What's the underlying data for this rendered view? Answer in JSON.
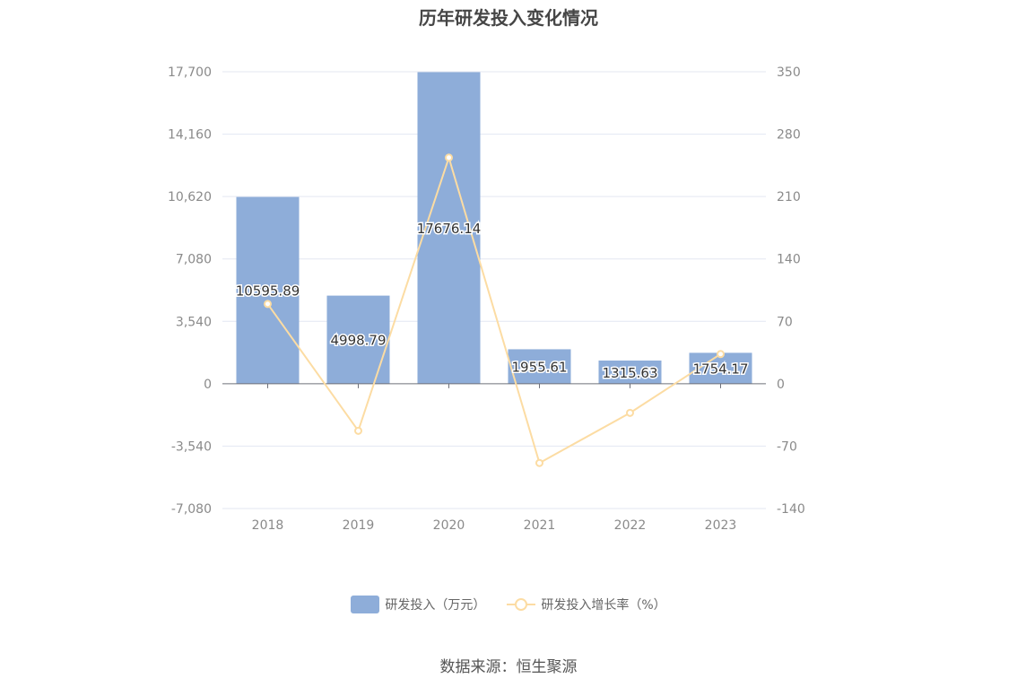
{
  "colors": {
    "bar": "#8eadd9",
    "line": "#fcdca3",
    "grid": "#e3e7f2",
    "axis": "#6e7079",
    "tick_text": "#8a8a8a"
  },
  "source_text": "数据来源：恒生聚源",
  "chart_data": {
    "type": "bar",
    "title": "历年研发投入变化情况",
    "categories": [
      "2018",
      "2019",
      "2020",
      "2021",
      "2022",
      "2023"
    ],
    "y_left": {
      "ticks": [
        "17,700",
        "14,160",
        "10,620",
        "7,080",
        "3,540",
        "0",
        "-3,540",
        "-7,080"
      ],
      "min": -7080,
      "max": 17700
    },
    "y_right": {
      "ticks": [
        "350",
        "280",
        "210",
        "140",
        "70",
        "0",
        "-70",
        "-140"
      ],
      "min": -140,
      "max": 350
    },
    "series": [
      {
        "name": "研发投入（万元）",
        "type": "bar",
        "axis": "left",
        "values": [
          10595.89,
          4998.79,
          17676.14,
          1955.61,
          1315.63,
          1754.17
        ],
        "labels": [
          "10595.89",
          "4998.79",
          "17676.14",
          "1955.61",
          "1315.63",
          "1754.17"
        ]
      },
      {
        "name": "研发投入增长率（%）",
        "type": "line",
        "axis": "right",
        "values": [
          89.5,
          -52.8,
          253.6,
          -88.9,
          -32.7,
          33.3
        ]
      }
    ],
    "grid": true,
    "legend": "bottom-center"
  }
}
